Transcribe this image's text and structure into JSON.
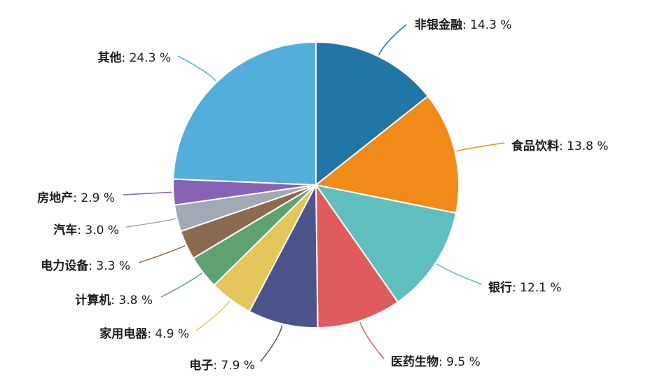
{
  "chart_data": {
    "type": "pie",
    "title": "",
    "unit": "%",
    "slices": [
      {
        "label": "非银金融",
        "value": 14.3,
        "color": "#2276a5"
      },
      {
        "label": "食品饮料",
        "value": 13.8,
        "color": "#f28a1a"
      },
      {
        "label": "银行",
        "value": 12.1,
        "color": "#5fbfbf"
      },
      {
        "label": "医药生物",
        "value": 9.5,
        "color": "#e05c5c"
      },
      {
        "label": "电子",
        "value": 7.9,
        "color": "#4b558b"
      },
      {
        "label": "家用电器",
        "value": 4.9,
        "color": "#e5c65a"
      },
      {
        "label": "计算机",
        "value": 3.8,
        "color": "#5fa271"
      },
      {
        "label": "电力设备",
        "value": 3.3,
        "color": "#8c6a4f"
      },
      {
        "label": "汽车",
        "value": 3.0,
        "color": "#a0a9b4"
      },
      {
        "label": "房地产",
        "value": 2.9,
        "color": "#8663b4"
      },
      {
        "label": "其他",
        "value": 24.3,
        "color": "#53aedc"
      }
    ]
  }
}
